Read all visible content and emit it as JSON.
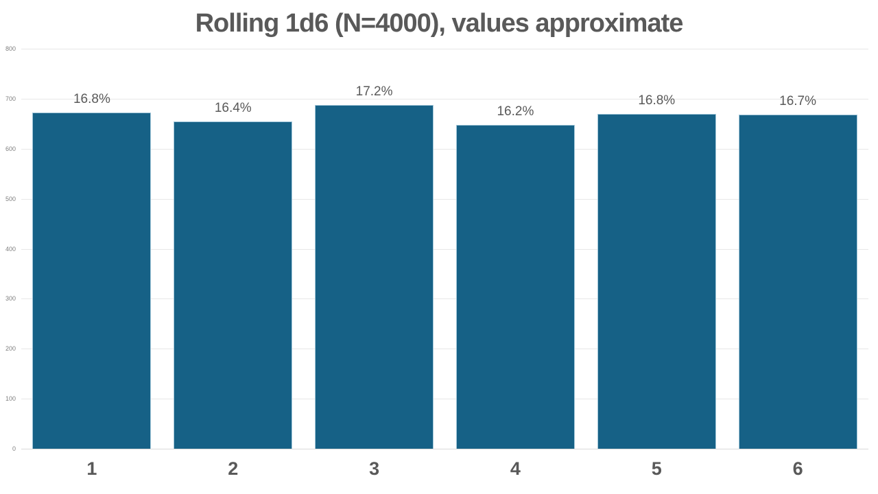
{
  "chart_data": {
    "type": "bar",
    "title": "Rolling 1d6 (N=4000), values approximate",
    "categories": [
      "1",
      "2",
      "3",
      "4",
      "5",
      "6"
    ],
    "values": [
      672,
      654,
      688,
      647,
      670,
      668
    ],
    "bar_labels": [
      "16.8%",
      "16.4%",
      "17.2%",
      "16.2%",
      "16.8%",
      "16.7%"
    ],
    "xlabel": "",
    "ylabel": "",
    "ylim": [
      0,
      800
    ],
    "yticks": [
      0,
      100,
      200,
      300,
      400,
      500,
      600,
      700,
      800
    ],
    "grid": true,
    "legend": false,
    "colors": {
      "bar_fill": "#166186",
      "bar_edge": "#a4c8da",
      "gridline": "#e7e7e7",
      "baseline": "#d9d9d9",
      "title_text": "#595959",
      "tick_text": "#7f7f7f",
      "bar_label_text": "#595959",
      "category_label_text": "#595959",
      "background": "#ffffff"
    }
  }
}
